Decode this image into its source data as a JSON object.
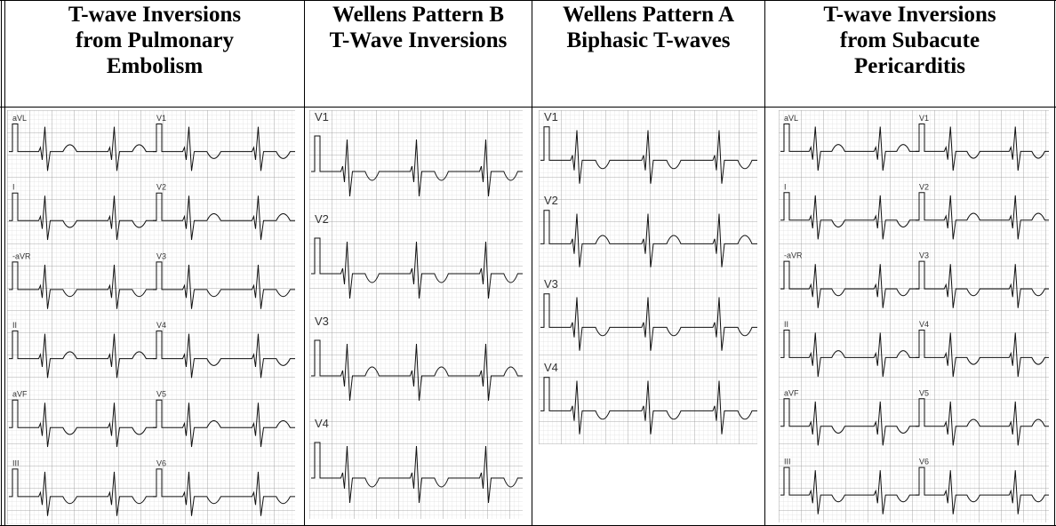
{
  "table": {
    "headers": [
      "T-wave Inversions from Pulmonary Embolism",
      "Wellens Pattern B T-Wave Inversions",
      "Wellens Pattern A Biphasic T-waves",
      "T-wave Inversions from Subacute Pericarditis"
    ],
    "leads": [
      [
        "aVL",
        "V1",
        "I",
        "V2",
        "-aVR",
        "V3",
        "II",
        "V4",
        "aVF",
        "V5",
        "III",
        "V6"
      ],
      [
        "V1",
        "V2",
        "V3",
        "V4"
      ],
      [
        "V1",
        "V2",
        "V3",
        "V4"
      ],
      [
        "aVL",
        "V1",
        "I",
        "V2",
        "-aVR",
        "V3",
        "II",
        "V4",
        "aVF",
        "V5",
        "III",
        "V6"
      ]
    ]
  }
}
